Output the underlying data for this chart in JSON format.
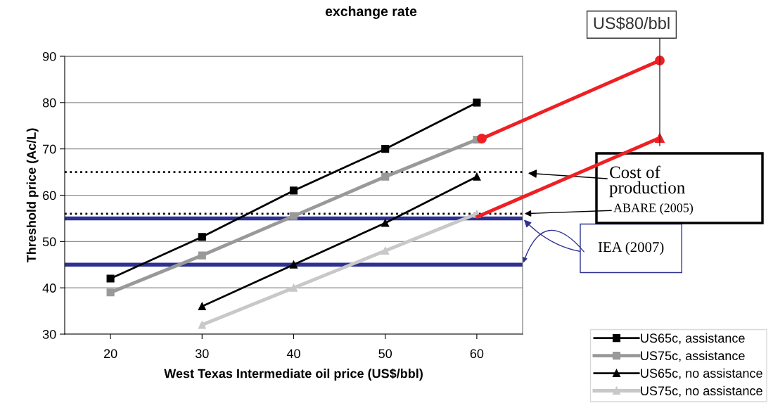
{
  "chart_data": {
    "type": "line",
    "title": "exchange rate",
    "xlabel": "West Texas Intermediate oil price (US$/bbl)",
    "ylabel": "Threshold price (Ac/L)",
    "xlim": [
      15,
      65
    ],
    "xticks": [
      20,
      30,
      40,
      50,
      60
    ],
    "ylim": [
      30,
      90
    ],
    "yticks": [
      30,
      40,
      50,
      60,
      70,
      80,
      90
    ],
    "grid": "y",
    "legend": "bottom right",
    "x": [
      20,
      30,
      40,
      50,
      60
    ],
    "series": [
      {
        "name": "US65c, assistance",
        "color": "#000000",
        "marker": "square",
        "values": [
          42,
          51,
          61,
          70,
          80
        ]
      },
      {
        "name": "US75c, assistance",
        "color": "#999999",
        "marker": "square",
        "values": [
          39,
          47,
          55.5,
          64,
          72
        ]
      },
      {
        "name": "US65c, no assistance",
        "color": "#000000",
        "marker": "triangle",
        "values": [
          null,
          36,
          45,
          54,
          64
        ]
      },
      {
        "name": "US75c, no assistance",
        "color": "#c8c8c8",
        "marker": "triangle",
        "values": [
          null,
          32,
          40,
          48,
          56
        ]
      }
    ],
    "ref_lines": [
      {
        "axis": "y",
        "value": 65,
        "color": "#000000",
        "line_style": "dotted"
      },
      {
        "axis": "y",
        "value": 56,
        "color": "#000000",
        "line_style": "dotted"
      },
      {
        "axis": "y",
        "value": 55,
        "color": "#2e3192",
        "line_style": "solid"
      },
      {
        "axis": "y",
        "value": 45,
        "color": "#2e3192",
        "line_style": "solid"
      }
    ],
    "annotations": [
      "US$80/bbl",
      "Cost of\nproduction",
      {
        "text": "ABARE (2005)",
        "x": 65,
        "y": 56
      },
      {
        "text": "IEA (2007)",
        "x": 65,
        "y": 55
      }
    ]
  }
}
